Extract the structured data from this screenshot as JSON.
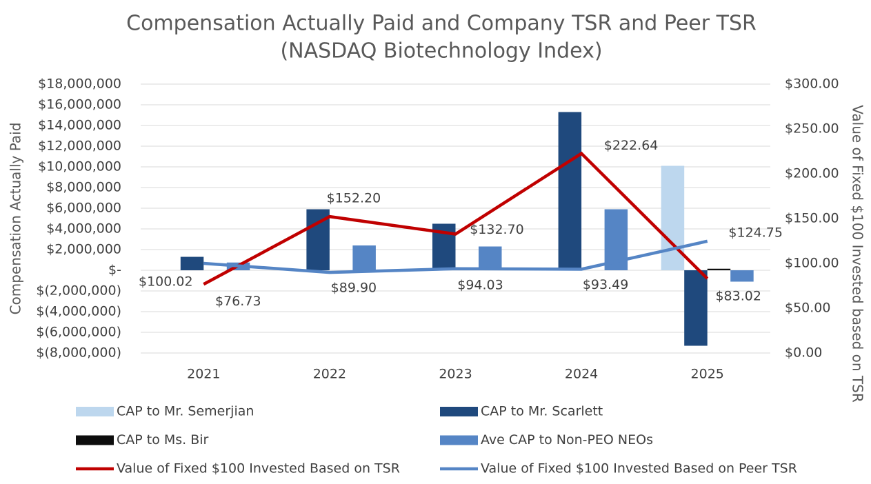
{
  "chart_data": {
    "type": "bar_line",
    "title": "Compensation Actually Paid and Company TSR and Peer TSR",
    "subtitle": "(NASDAQ Biotechnology Index)",
    "y_label": "Compensation Actually Paid",
    "y2_label": "Value of Fixed $100 Invested based on TSR",
    "categories": [
      "2021",
      "2022",
      "2023",
      "2024",
      "2025"
    ],
    "ylim": [
      -8000000,
      18000000
    ],
    "yticks": [
      {
        "value": 18000000,
        "label": "$18,000,000"
      },
      {
        "value": 16000000,
        "label": "$16,000,000"
      },
      {
        "value": 14000000,
        "label": "$14,000,000"
      },
      {
        "value": 12000000,
        "label": "$12,000,000"
      },
      {
        "value": 10000000,
        "label": "$10,000,000"
      },
      {
        "value": 8000000,
        "label": "$8,000,000"
      },
      {
        "value": 6000000,
        "label": "$6,000,000"
      },
      {
        "value": 4000000,
        "label": "$4,000,000"
      },
      {
        "value": 2000000,
        "label": "$2,000,000"
      },
      {
        "value": 0,
        "label": "$-"
      },
      {
        "value": -2000000,
        "label": "$(2,000,000)"
      },
      {
        "value": -4000000,
        "label": "$(4,000,000)"
      },
      {
        "value": -6000000,
        "label": "$(6,000,000)"
      },
      {
        "value": -8000000,
        "label": "$(8,000,000)"
      }
    ],
    "y2lim": [
      0,
      300
    ],
    "y2ticks": [
      {
        "value": 300,
        "label": "$300.00"
      },
      {
        "value": 250,
        "label": "$250.00"
      },
      {
        "value": 200,
        "label": "$200.00"
      },
      {
        "value": 150,
        "label": "$150.00"
      },
      {
        "value": 100,
        "label": "$100.00"
      },
      {
        "value": 50,
        "label": "$50.00"
      },
      {
        "value": 0,
        "label": "$0.00"
      }
    ],
    "grid": true,
    "series": [
      {
        "name": "CAP to Mr. Semerjian",
        "type": "bar",
        "color": "#bdd7ee",
        "values": [
          null,
          null,
          null,
          null,
          10100000
        ]
      },
      {
        "name": "CAP to Mr. Scarlett",
        "type": "bar",
        "color": "#1f497d",
        "values": [
          1300000,
          5900000,
          4500000,
          15300000,
          -7300000
        ]
      },
      {
        "name": "CAP to Ms. Bir",
        "type": "bar",
        "color": "#0d0d0d",
        "values": [
          null,
          null,
          null,
          null,
          150000
        ]
      },
      {
        "name": "Ave CAP to Non-PEO NEOs",
        "type": "bar",
        "color": "#5585c5",
        "values": [
          750000,
          2400000,
          2300000,
          5900000,
          -1100000
        ]
      },
      {
        "name": "Value of Fixed $100 Invested Based on TSR",
        "type": "line",
        "axis": "y2",
        "color": "#c00000",
        "values": [
          76.73,
          152.2,
          132.7,
          222.64,
          83.02
        ],
        "value_labels": [
          "$76.73",
          "$152.20",
          "$132.70",
          "$222.64",
          "$83.02"
        ]
      },
      {
        "name": "Value of Fixed $100 Invested Based on Peer TSR",
        "type": "line",
        "axis": "y2",
        "color": "#5585c5",
        "values": [
          100.02,
          89.9,
          94.03,
          93.49,
          124.75
        ],
        "value_labels": [
          "$100.02",
          "$89.90",
          "$94.03",
          "$93.49",
          "$124.75"
        ]
      }
    ]
  }
}
